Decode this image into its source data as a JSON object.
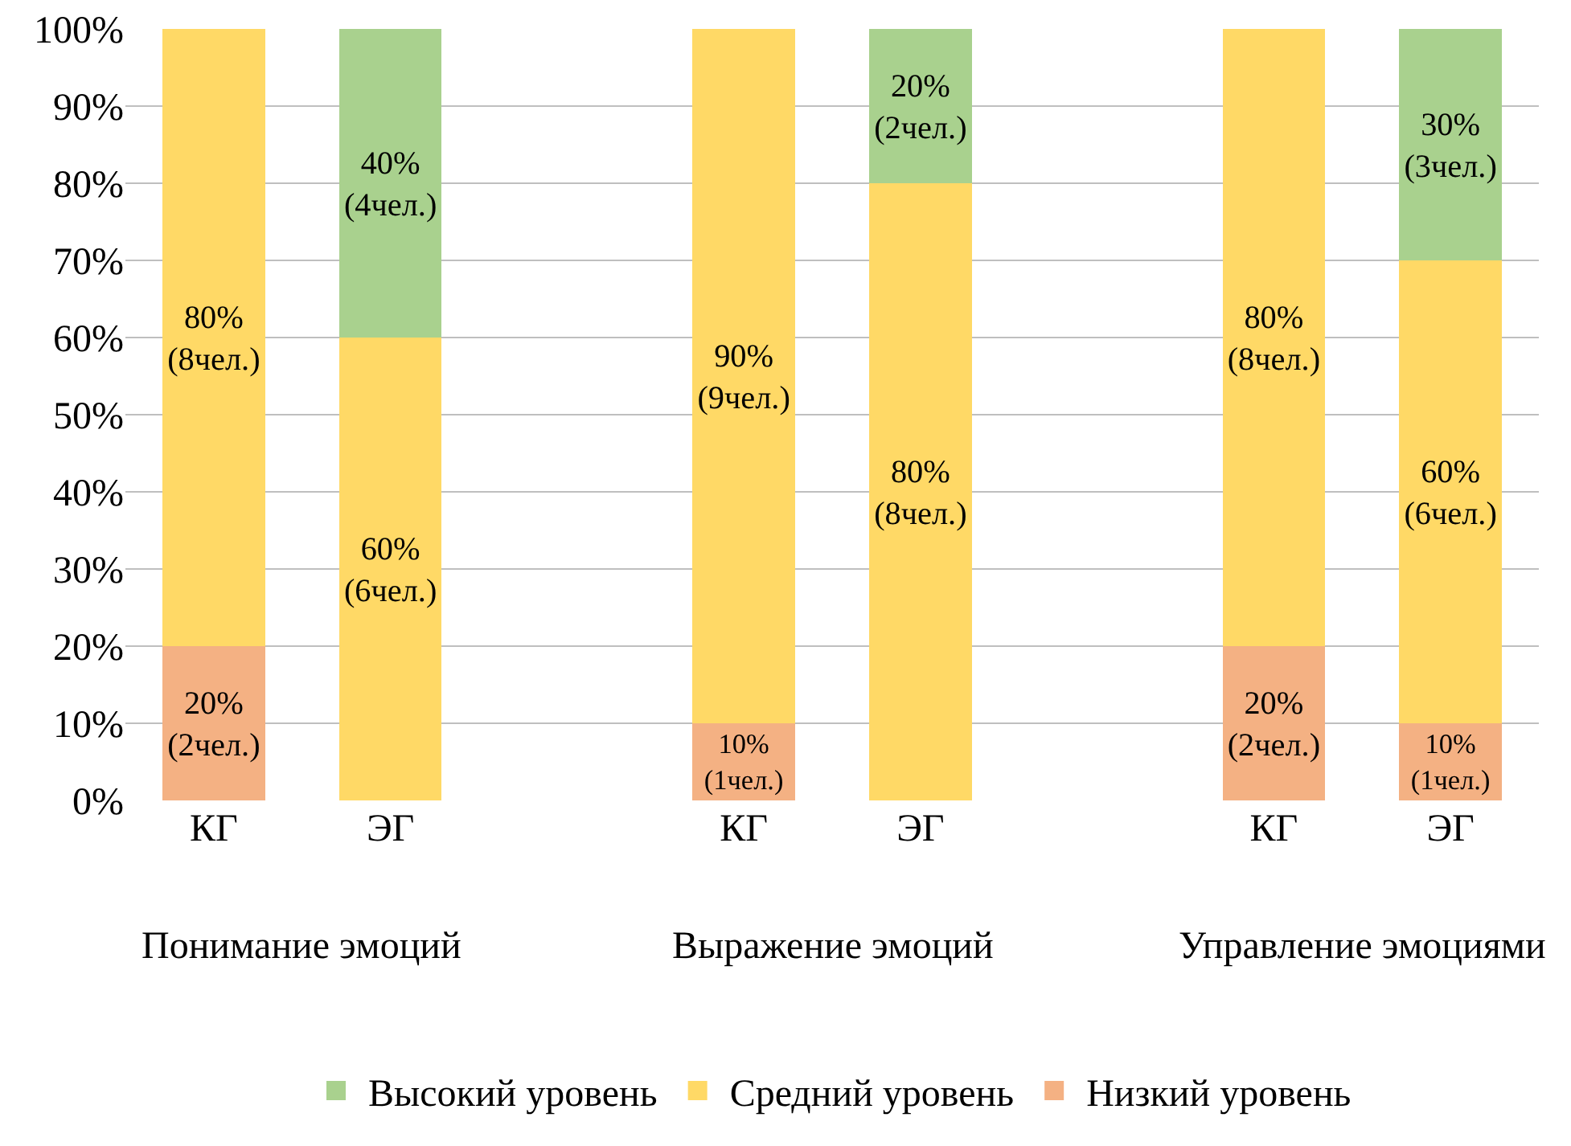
{
  "chart_data": {
    "type": "bar",
    "stacked": true,
    "categories": [
      "КГ",
      "ЭГ",
      null,
      "КГ",
      "ЭГ",
      null,
      "КГ",
      "ЭГ"
    ],
    "series": [
      {
        "name": "Низкий уровень",
        "color": "#f4b183",
        "values": [
          20,
          null,
          null,
          10,
          null,
          null,
          20,
          10
        ],
        "value_labels": [
          "20%\n(2чел.)",
          null,
          null,
          "10%\n(1чел.)",
          null,
          null,
          "20%\n(2чел.)",
          "10%\n(1чел.)"
        ]
      },
      {
        "name": "Средний уровень",
        "color": "#ffd966",
        "values": [
          80,
          60,
          null,
          90,
          80,
          null,
          80,
          60
        ],
        "value_labels": [
          "80%\n(8чел.)",
          "60%\n(6чел.)",
          null,
          "90%\n(9чел.)",
          "80%\n(8чел.)",
          null,
          "80%\n(8чел.)",
          "60%\n(6чел.)"
        ]
      },
      {
        "name": "Высокий уровень",
        "color": "#a9d18e",
        "values": [
          null,
          40,
          null,
          null,
          20,
          null,
          null,
          30
        ],
        "value_labels": [
          null,
          "40%\n(4чел.)",
          null,
          null,
          "20%\n(2чел.)",
          null,
          null,
          "30%\n(3чел.)"
        ]
      }
    ],
    "annotations": [
      "Понимание эмоций",
      "Выражение эмоций",
      "Управление эмоциями"
    ],
    "ylim": [
      0,
      100
    ],
    "yticks": [
      {
        "value": 0,
        "label": "0%"
      },
      {
        "value": 10,
        "label": "10%"
      },
      {
        "value": 20,
        "label": "20%"
      },
      {
        "value": 30,
        "label": "30%"
      },
      {
        "value": 40,
        "label": "40%"
      },
      {
        "value": 50,
        "label": "50%"
      },
      {
        "value": 60,
        "label": "60%"
      },
      {
        "value": 70,
        "label": "70%"
      },
      {
        "value": 80,
        "label": "80%"
      },
      {
        "value": 90,
        "label": "90%"
      },
      {
        "value": 100,
        "label": "100%"
      }
    ],
    "grid": "y",
    "legend": "bottom"
  }
}
